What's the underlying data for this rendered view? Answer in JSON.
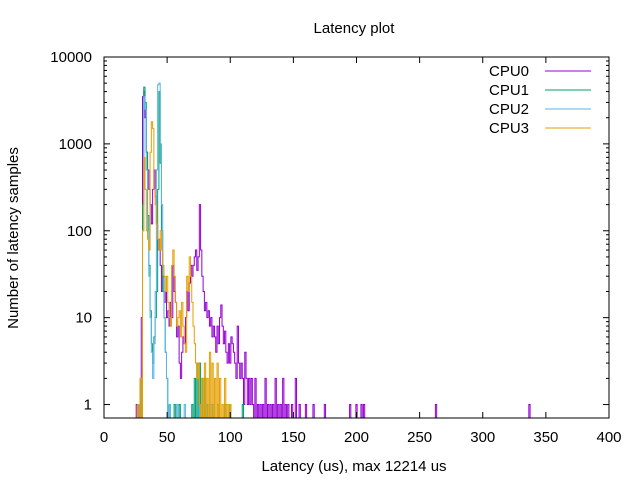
{
  "chart_data": {
    "type": "line",
    "title": "Latency plot",
    "xlabel": "Latency (us), max 12214 us",
    "ylabel": "Number of latency samples",
    "xlim": [
      0,
      400
    ],
    "ylim": [
      0.7,
      10000
    ],
    "yscale": "log",
    "grid": false,
    "legend_position": "top-right",
    "x_ticks": [
      "0",
      "50",
      "100",
      "150",
      "200",
      "250",
      "300",
      "350",
      "400"
    ],
    "y_ticks": [
      "1",
      "10",
      "100",
      "1000",
      "10000"
    ],
    "y_tick_values": [
      1,
      10,
      100,
      1000,
      10000
    ],
    "series": [
      {
        "name": "CPU0",
        "color": "#9400d3",
        "points": [
          [
            26,
            1
          ],
          [
            28,
            1
          ],
          [
            30,
            10
          ],
          [
            31,
            3500
          ],
          [
            32,
            4000
          ],
          [
            33,
            2000
          ],
          [
            34,
            800
          ],
          [
            35,
            500
          ],
          [
            36,
            300
          ],
          [
            37,
            200
          ],
          [
            38,
            120
          ],
          [
            39,
            300
          ],
          [
            40,
            500
          ],
          [
            41,
            250
          ],
          [
            42,
            120
          ],
          [
            43,
            60
          ],
          [
            44,
            80
          ],
          [
            45,
            40
          ],
          [
            46,
            20
          ],
          [
            47,
            30
          ],
          [
            48,
            15
          ],
          [
            49,
            20
          ],
          [
            50,
            10
          ],
          [
            51,
            12
          ],
          [
            52,
            8
          ],
          [
            53,
            15
          ],
          [
            54,
            10
          ],
          [
            55,
            40
          ],
          [
            56,
            20
          ],
          [
            57,
            15
          ],
          [
            58,
            6
          ],
          [
            59,
            8
          ],
          [
            60,
            3
          ],
          [
            61,
            2
          ],
          [
            62,
            4
          ],
          [
            63,
            6
          ],
          [
            64,
            5
          ],
          [
            65,
            10
          ],
          [
            66,
            20
          ],
          [
            67,
            12
          ],
          [
            68,
            25
          ],
          [
            69,
            40
          ],
          [
            70,
            30
          ],
          [
            71,
            40
          ],
          [
            72,
            50
          ],
          [
            73,
            60
          ],
          [
            74,
            35
          ],
          [
            75,
            50
          ],
          [
            76,
            200
          ],
          [
            77,
            60
          ],
          [
            78,
            30
          ],
          [
            79,
            20
          ],
          [
            80,
            12
          ],
          [
            81,
            15
          ],
          [
            82,
            10
          ],
          [
            83,
            12
          ],
          [
            84,
            8
          ],
          [
            85,
            10
          ],
          [
            86,
            6
          ],
          [
            87,
            8
          ],
          [
            88,
            6
          ],
          [
            89,
            4
          ],
          [
            90,
            8
          ],
          [
            91,
            5
          ],
          [
            92,
            10
          ],
          [
            93,
            14
          ],
          [
            94,
            8
          ],
          [
            95,
            5
          ],
          [
            96,
            7
          ],
          [
            97,
            4
          ],
          [
            98,
            3
          ],
          [
            99,
            5
          ],
          [
            100,
            3
          ],
          [
            101,
            6
          ],
          [
            102,
            5
          ],
          [
            103,
            4
          ],
          [
            104,
            3
          ],
          [
            105,
            2
          ],
          [
            106,
            8
          ],
          [
            107,
            3
          ],
          [
            108,
            2
          ],
          [
            109,
            3
          ],
          [
            110,
            2
          ],
          [
            111,
            1
          ],
          [
            112,
            4
          ],
          [
            113,
            2
          ],
          [
            114,
            1
          ],
          [
            115,
            2
          ],
          [
            116,
            1
          ],
          [
            117,
            2
          ],
          [
            118,
            1
          ],
          [
            120,
            2
          ],
          [
            122,
            1
          ],
          [
            124,
            1
          ],
          [
            126,
            1
          ],
          [
            128,
            2
          ],
          [
            130,
            1
          ],
          [
            132,
            1
          ],
          [
            134,
            1
          ],
          [
            136,
            2
          ],
          [
            138,
            1
          ],
          [
            140,
            1
          ],
          [
            142,
            2
          ],
          [
            144,
            1
          ],
          [
            146,
            1
          ],
          [
            149,
            1
          ],
          [
            152,
            2
          ],
          [
            155,
            1
          ],
          [
            160,
            1
          ],
          [
            166,
            1
          ],
          [
            175,
            1
          ],
          [
            195,
            1
          ],
          [
            200,
            1
          ],
          [
            204,
            1
          ],
          [
            206,
            1
          ],
          [
            263,
            1
          ],
          [
            337,
            1
          ]
        ]
      },
      {
        "name": "CPU1",
        "color": "#009e73",
        "points": [
          [
            28,
            1
          ],
          [
            30,
            2
          ],
          [
            31,
            200
          ],
          [
            32,
            4500
          ],
          [
            33,
            3000
          ],
          [
            34,
            800
          ],
          [
            35,
            150
          ],
          [
            36,
            40
          ],
          [
            37,
            12
          ],
          [
            38,
            5
          ],
          [
            39,
            3
          ],
          [
            40,
            6
          ],
          [
            41,
            10
          ],
          [
            42,
            20
          ],
          [
            43,
            300
          ],
          [
            44,
            4000
          ],
          [
            45,
            600
          ],
          [
            46,
            100
          ],
          [
            47,
            20
          ],
          [
            48,
            10
          ],
          [
            49,
            4
          ],
          [
            50,
            2
          ],
          [
            52,
            1
          ],
          [
            56,
            1
          ],
          [
            60,
            1
          ],
          [
            70,
            1
          ],
          [
            72,
            2
          ],
          [
            74,
            3
          ],
          [
            76,
            3
          ],
          [
            78,
            2
          ],
          [
            80,
            2
          ],
          [
            82,
            1
          ],
          [
            86,
            1
          ],
          [
            90,
            1
          ],
          [
            96,
            1
          ],
          [
            100,
            1
          ],
          [
            110,
            1
          ]
        ]
      },
      {
        "name": "CPU2",
        "color": "#56b4e9",
        "points": [
          [
            28,
            1
          ],
          [
            30,
            2
          ],
          [
            31,
            100
          ],
          [
            32,
            3500
          ],
          [
            33,
            2500
          ],
          [
            34,
            500
          ],
          [
            35,
            100
          ],
          [
            36,
            30
          ],
          [
            37,
            10
          ],
          [
            38,
            4
          ],
          [
            39,
            2
          ],
          [
            40,
            5
          ],
          [
            41,
            20
          ],
          [
            42,
            500
          ],
          [
            43,
            4800
          ],
          [
            44,
            5000
          ],
          [
            45,
            1000
          ],
          [
            46,
            200
          ],
          [
            47,
            40
          ],
          [
            48,
            10
          ],
          [
            49,
            4
          ],
          [
            50,
            2
          ],
          [
            52,
            1
          ],
          [
            58,
            1
          ],
          [
            64,
            1
          ],
          [
            76,
            1
          ],
          [
            84,
            1
          ]
        ]
      },
      {
        "name": "CPU3",
        "color": "#e69f00",
        "points": [
          [
            27,
            1
          ],
          [
            29,
            2
          ],
          [
            31,
            100
          ],
          [
            32,
            700
          ],
          [
            33,
            300
          ],
          [
            34,
            100
          ],
          [
            35,
            80
          ],
          [
            36,
            60
          ],
          [
            37,
            800
          ],
          [
            38,
            1800
          ],
          [
            39,
            1500
          ],
          [
            40,
            300
          ],
          [
            41,
            200
          ],
          [
            42,
            120
          ],
          [
            43,
            80
          ],
          [
            44,
            60
          ],
          [
            45,
            100
          ],
          [
            46,
            60
          ],
          [
            47,
            40
          ],
          [
            48,
            30
          ],
          [
            49,
            20
          ],
          [
            50,
            30
          ],
          [
            51,
            15
          ],
          [
            52,
            10
          ],
          [
            53,
            8
          ],
          [
            54,
            40
          ],
          [
            55,
            60
          ],
          [
            56,
            30
          ],
          [
            57,
            15
          ],
          [
            58,
            8
          ],
          [
            59,
            10
          ],
          [
            60,
            12
          ],
          [
            61,
            6
          ],
          [
            62,
            15
          ],
          [
            63,
            8
          ],
          [
            64,
            5
          ],
          [
            65,
            4
          ],
          [
            66,
            30
          ],
          [
            67,
            20
          ],
          [
            68,
            50
          ],
          [
            69,
            30
          ],
          [
            70,
            15
          ],
          [
            71,
            8
          ],
          [
            72,
            5
          ],
          [
            73,
            3
          ],
          [
            74,
            2
          ],
          [
            75,
            3
          ],
          [
            76,
            1
          ],
          [
            78,
            2
          ],
          [
            80,
            3
          ],
          [
            82,
            2
          ],
          [
            84,
            4
          ],
          [
            86,
            3
          ],
          [
            88,
            2
          ],
          [
            90,
            3
          ],
          [
            92,
            2
          ],
          [
            94,
            1
          ],
          [
            96,
            2
          ],
          [
            98,
            1
          ],
          [
            100,
            1
          ]
        ]
      }
    ]
  }
}
